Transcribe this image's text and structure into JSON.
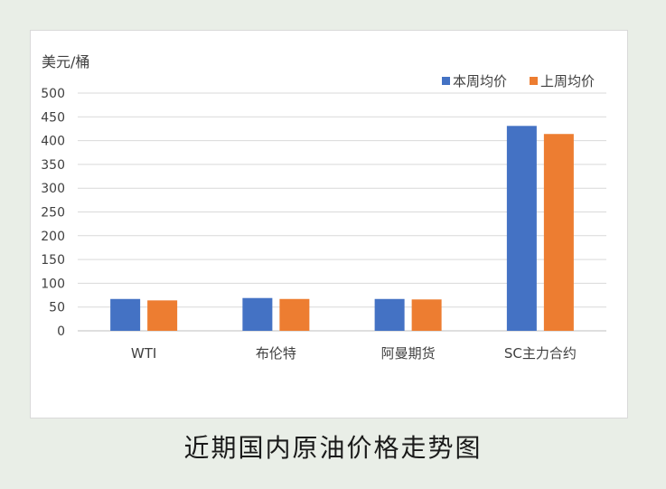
{
  "caption": "近期国内原油价格走势图",
  "colors": {
    "background": "#e9eee7",
    "gridline": "#d9d9d9",
    "axis": "#bfbfbf"
  },
  "chart_data": {
    "type": "bar",
    "title": "",
    "xlabel": "",
    "ylabel": "美元/桶",
    "categories": [
      "WTI",
      "布伦特",
      "阿曼期货",
      "SC主力合约"
    ],
    "series": [
      {
        "name": "本周均价",
        "color": "#4472C4",
        "values": [
          67,
          69,
          67,
          431
        ]
      },
      {
        "name": "上周均价",
        "color": "#ED7D31",
        "values": [
          64,
          67,
          66,
          414
        ]
      }
    ],
    "ylim": [
      0,
      500
    ],
    "yticks": [
      0,
      50,
      100,
      150,
      200,
      250,
      300,
      350,
      400,
      450,
      500
    ],
    "grid": true,
    "legend": "top-right"
  }
}
